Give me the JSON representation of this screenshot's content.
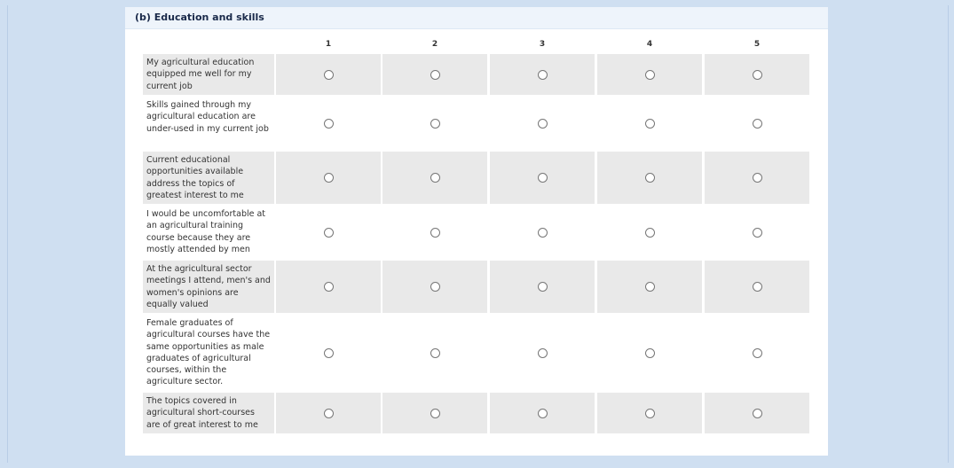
{
  "header": {
    "title": "(b) Education and skills"
  },
  "table": {
    "columns": [
      "1",
      "2",
      "3",
      "4",
      "5"
    ],
    "rows": [
      "My agricultural education equipped me well for my current job",
      "Skills gained through my agricultural education are under-used in my current job",
      "Current educational opportunities available address the topics of greatest interest to me",
      "I would be uncomfortable at an agricultural training course because they are mostly attended by men",
      "At the agricultural sector meetings I attend, men's and women's opinions are equally valued",
      "Female graduates of agricultural courses have the same opportunities as male graduates of agricultural courses, within the agriculture sector.",
      "The topics covered in agricultural short-courses are of great interest to me"
    ]
  }
}
